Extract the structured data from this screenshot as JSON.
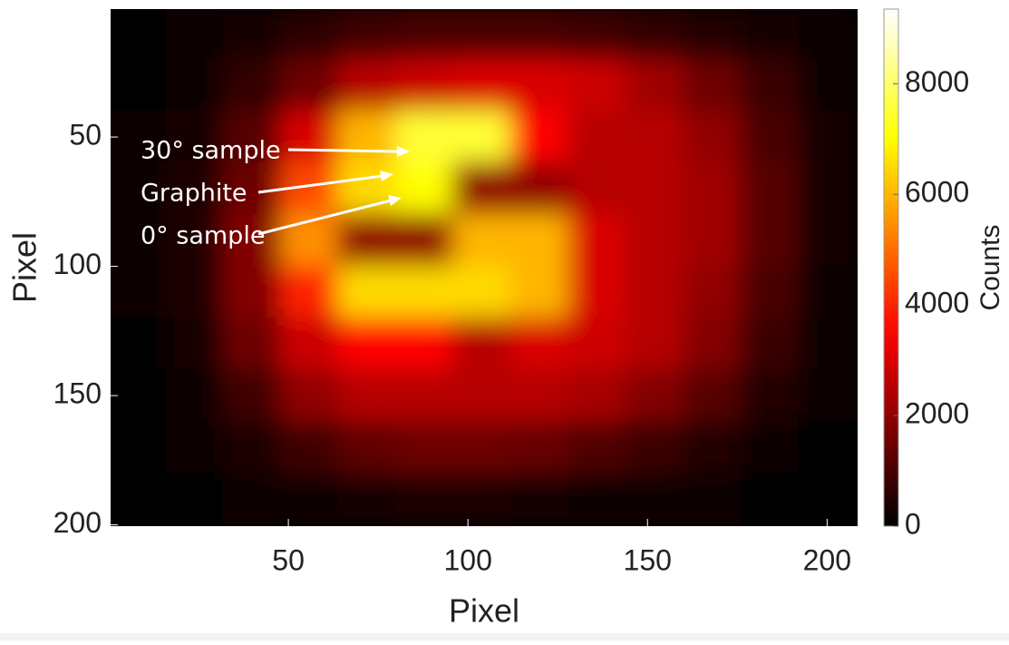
{
  "chart_data": {
    "type": "heatmap",
    "xlabel": "Pixel",
    "ylabel": "Pixel",
    "colorbar_label": "Counts",
    "colormap": "hot",
    "annotations": [
      "30° sample",
      "Graphite",
      "0° sample"
    ],
    "x": [
      8,
      24,
      40,
      56,
      72,
      88,
      104,
      120,
      136,
      152,
      168,
      184,
      200
    ],
    "y": [
      10,
      30,
      50,
      70,
      90,
      110,
      130,
      150,
      170,
      190
    ],
    "z": [
      [
        0,
        100,
        300,
        600,
        900,
        1000,
        1000,
        1000,
        900,
        700,
        500,
        300,
        100
      ],
      [
        0,
        200,
        700,
        1500,
        2500,
        2800,
        3000,
        3000,
        2800,
        2200,
        1500,
        800,
        200
      ],
      [
        100,
        300,
        1200,
        3000,
        6000,
        7500,
        7500,
        3500,
        2500,
        2500,
        2000,
        1000,
        300
      ],
      [
        100,
        400,
        1500,
        4500,
        6500,
        7000,
        2000,
        2000,
        2500,
        2500,
        2200,
        1200,
        300
      ],
      [
        100,
        400,
        1800,
        5500,
        2000,
        2000,
        6000,
        6000,
        3000,
        2500,
        2200,
        1200,
        300
      ],
      [
        100,
        400,
        1800,
        4000,
        6500,
        6500,
        6500,
        6000,
        3000,
        2500,
        2000,
        1000,
        200
      ],
      [
        50,
        300,
        1500,
        2800,
        3500,
        3500,
        2500,
        3000,
        2800,
        2500,
        1800,
        800,
        150
      ],
      [
        0,
        200,
        900,
        2000,
        2500,
        2500,
        2500,
        2500,
        2300,
        1800,
        1200,
        500,
        100
      ],
      [
        0,
        100,
        400,
        900,
        1300,
        1500,
        1500,
        1400,
        1100,
        800,
        500,
        200,
        0
      ],
      [
        0,
        0,
        100,
        200,
        300,
        400,
        400,
        300,
        200,
        150,
        100,
        0,
        0
      ]
    ],
    "xlim": [
      0.5,
      208.5
    ],
    "ylim": [
      0.5,
      200.5
    ],
    "y_reversed": true,
    "xticks": [
      50,
      100,
      150,
      200
    ],
    "yticks": [
      50,
      100,
      150,
      200
    ],
    "clim": [
      0,
      9350
    ],
    "cticks": [
      0,
      2000,
      4000,
      6000,
      8000
    ]
  }
}
